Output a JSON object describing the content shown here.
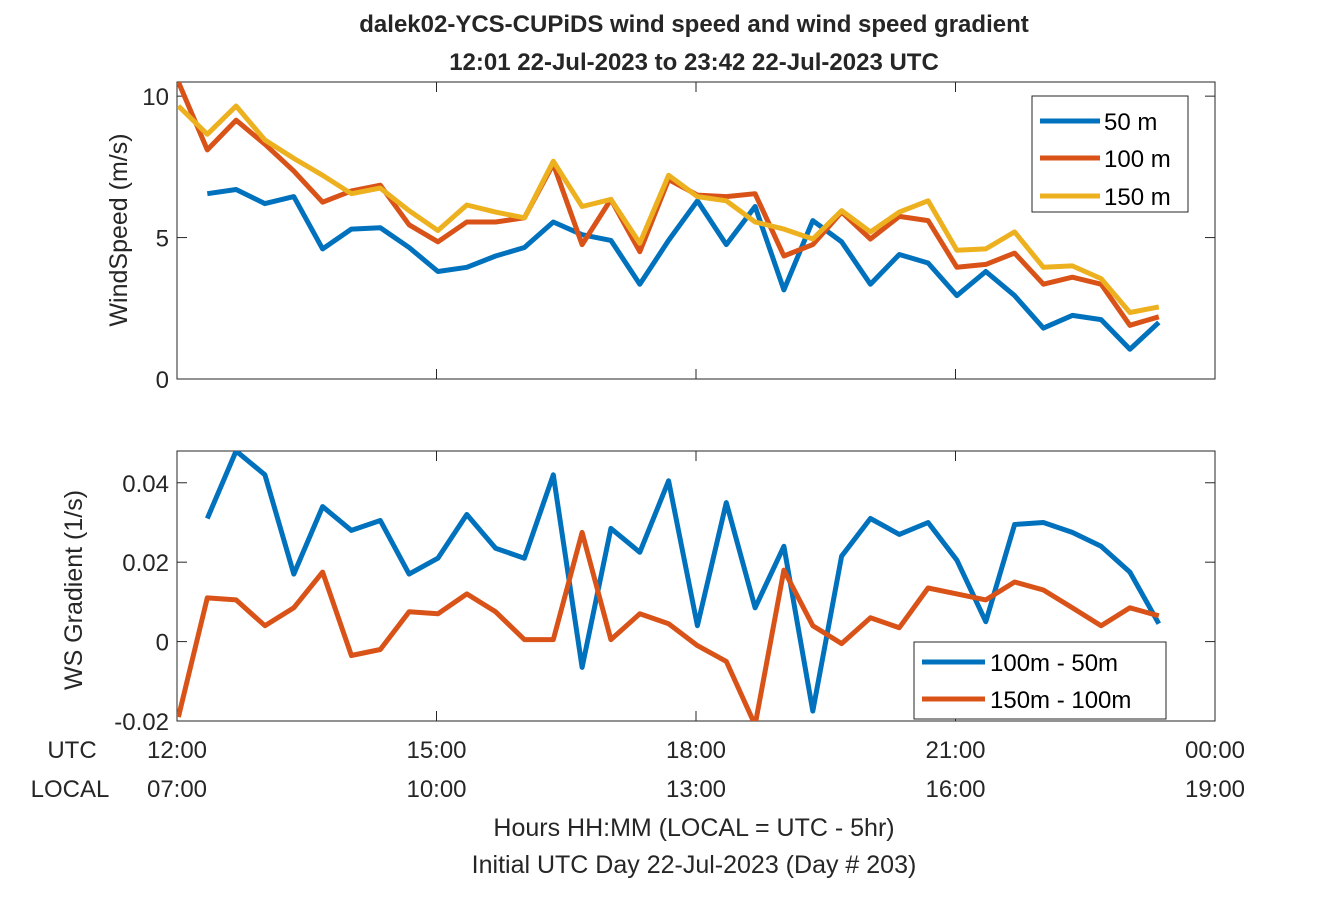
{
  "figure": {
    "title_line1": "dalek02-YCS-CUPiDS  wind speed and wind speed gradient",
    "title_line2": "12:01 22-Jul-2023 to 23:42 22-Jul-2023  UTC",
    "row_labels": {
      "utc": "UTC",
      "local": "LOCAL"
    },
    "utc_ticks": [
      "12:00",
      "15:00",
      "18:00",
      "21:00",
      "00:00"
    ],
    "local_ticks": [
      "07:00",
      "10:00",
      "13:00",
      "16:00",
      "19:00"
    ],
    "xlabel_line1": "Hours HH:MM  (LOCAL = UTC - 5hr)",
    "xlabel_line2": "Initial UTC Day 22-Jul-2023 (Day # 203)",
    "colors": {
      "blue": "#0072BD",
      "orange": "#D95319",
      "yellow": "#EDB120",
      "axis": "#262626"
    }
  },
  "chart_data": [
    {
      "type": "line",
      "ylabel": "WindSpeed (m/s)",
      "xlim": [
        "12:00",
        "00:00"
      ],
      "ylim": [
        0,
        10.5
      ],
      "yticks": [
        0,
        5,
        10
      ],
      "ytick_labels": [
        "0",
        "5",
        "10"
      ],
      "grid": false,
      "legend_position": "top-right",
      "x": [
        "12:01",
        "12:21",
        "12:41",
        "13:01",
        "13:21",
        "13:41",
        "14:01",
        "14:21",
        "14:41",
        "15:01",
        "15:21",
        "15:41",
        "16:01",
        "16:21",
        "16:41",
        "17:01",
        "17:21",
        "17:41",
        "18:01",
        "18:21",
        "18:41",
        "19:01",
        "19:21",
        "19:41",
        "20:01",
        "20:21",
        "20:41",
        "21:01",
        "21:21",
        "21:41",
        "22:01",
        "22:21",
        "22:41",
        "23:01",
        "23:21",
        "23:42"
      ],
      "series": [
        {
          "name": "50 m",
          "color": "#0072BD",
          "values": [
            null,
            6.55,
            6.7,
            6.2,
            6.45,
            4.6,
            5.3,
            5.35,
            4.65,
            3.8,
            3.95,
            4.35,
            4.65,
            5.55,
            5.1,
            4.9,
            3.35,
            4.9,
            6.3,
            4.75,
            6.1,
            3.15,
            5.6,
            4.85,
            3.35,
            4.4,
            4.1,
            2.95,
            3.8,
            2.95,
            1.8,
            2.25,
            2.1,
            1.05,
            2.0,
            null
          ]
        },
        {
          "name": "100 m",
          "color": "#D95319",
          "values": [
            10.5,
            8.1,
            9.15,
            8.3,
            7.35,
            6.25,
            6.65,
            6.85,
            5.45,
            4.85,
            5.55,
            5.55,
            5.7,
            7.6,
            4.75,
            6.35,
            4.5,
            7.05,
            6.5,
            6.45,
            6.55,
            4.35,
            4.75,
            5.9,
            4.95,
            5.75,
            5.6,
            3.95,
            4.05,
            4.45,
            3.35,
            3.6,
            3.35,
            1.9,
            2.2,
            null
          ]
        },
        {
          "name": "150 m",
          "color": "#EDB120",
          "values": [
            9.65,
            8.65,
            9.65,
            8.45,
            7.8,
            7.2,
            6.55,
            6.75,
            5.95,
            5.25,
            6.15,
            5.9,
            5.7,
            7.7,
            6.1,
            6.35,
            4.8,
            7.2,
            6.45,
            6.3,
            5.55,
            5.3,
            4.95,
            5.95,
            5.2,
            5.9,
            6.3,
            4.55,
            4.6,
            5.2,
            3.95,
            4.0,
            3.55,
            2.35,
            2.55,
            null
          ]
        }
      ]
    },
    {
      "type": "line",
      "ylabel": "WS Gradient (1/s)",
      "xlim": [
        "12:00",
        "00:00"
      ],
      "ylim": [
        -0.02,
        0.048
      ],
      "yticks": [
        -0.02,
        0,
        0.02,
        0.04
      ],
      "ytick_labels": [
        "-0.02",
        "0",
        "0.02",
        "0.04"
      ],
      "grid": false,
      "legend_position": "bottom-right",
      "x": [
        "12:01",
        "12:21",
        "12:41",
        "13:01",
        "13:21",
        "13:41",
        "14:01",
        "14:21",
        "14:41",
        "15:01",
        "15:21",
        "15:41",
        "16:01",
        "16:21",
        "16:41",
        "17:01",
        "17:21",
        "17:41",
        "18:01",
        "18:21",
        "18:41",
        "19:01",
        "19:21",
        "19:41",
        "20:01",
        "20:21",
        "20:41",
        "21:01",
        "21:21",
        "21:41",
        "22:01",
        "22:21",
        "22:41",
        "23:01",
        "23:21",
        "23:42"
      ],
      "series": [
        {
          "name": "100m - 50m",
          "color": "#0072BD",
          "values": [
            null,
            0.031,
            0.048,
            0.042,
            0.017,
            0.034,
            0.028,
            0.0305,
            0.017,
            0.021,
            0.032,
            0.0235,
            0.021,
            0.042,
            -0.0065,
            0.0285,
            0.0225,
            0.0405,
            0.004,
            0.035,
            0.0085,
            0.024,
            -0.0175,
            0.0215,
            0.031,
            0.027,
            0.03,
            0.0205,
            0.005,
            0.0295,
            0.03,
            0.0275,
            0.024,
            0.0175,
            0.0045,
            null
          ]
        },
        {
          "name": "150m - 100m",
          "color": "#D95319",
          "values": [
            -0.019,
            0.011,
            0.0105,
            0.004,
            0.0085,
            0.0175,
            -0.0035,
            -0.002,
            0.0075,
            0.007,
            0.012,
            0.0075,
            0.0005,
            0.0005,
            0.0275,
            0.0005,
            0.007,
            0.0045,
            -0.001,
            -0.005,
            -0.021,
            0.018,
            0.004,
            -0.0005,
            0.006,
            0.0035,
            0.0135,
            0.012,
            0.0105,
            0.015,
            0.013,
            0.0085,
            0.004,
            0.0085,
            0.0065,
            null
          ]
        }
      ]
    }
  ]
}
